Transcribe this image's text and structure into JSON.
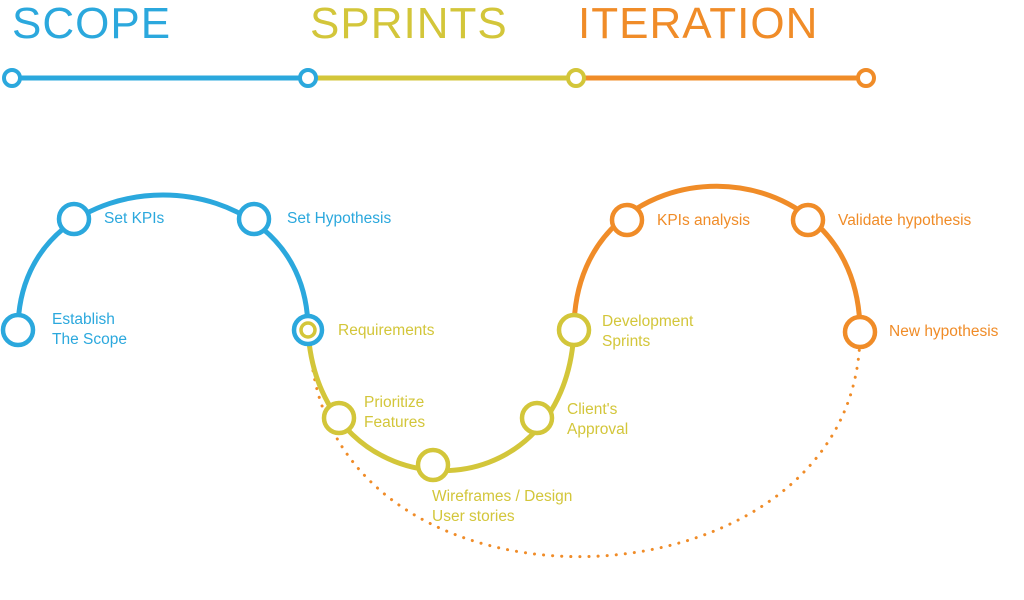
{
  "colors": {
    "scope": "#2ba8dd",
    "sprints": "#d3c63a",
    "iteration": "#f08c28",
    "background": "#ffffff"
  },
  "phases": {
    "scope": "SCOPE",
    "sprints": "SPRINTS",
    "iteration": "ITERATION"
  },
  "steps": {
    "establish": [
      "Establish",
      "The Scope"
    ],
    "set_kpis": "Set KPIs",
    "set_hypothesis": "Set Hypothesis",
    "requirements": "Requirements",
    "prioritize": [
      "Prioritize",
      "Features"
    ],
    "wireframes": [
      "Wireframes / Design",
      "User stories"
    ],
    "client_approval": [
      "Client's",
      "Approval"
    ],
    "development": [
      "Development",
      "Sprints"
    ],
    "kpis_analysis": "KPIs analysis",
    "validate": "Validate hypothesis",
    "new_hypothesis": "New hypothesis"
  }
}
